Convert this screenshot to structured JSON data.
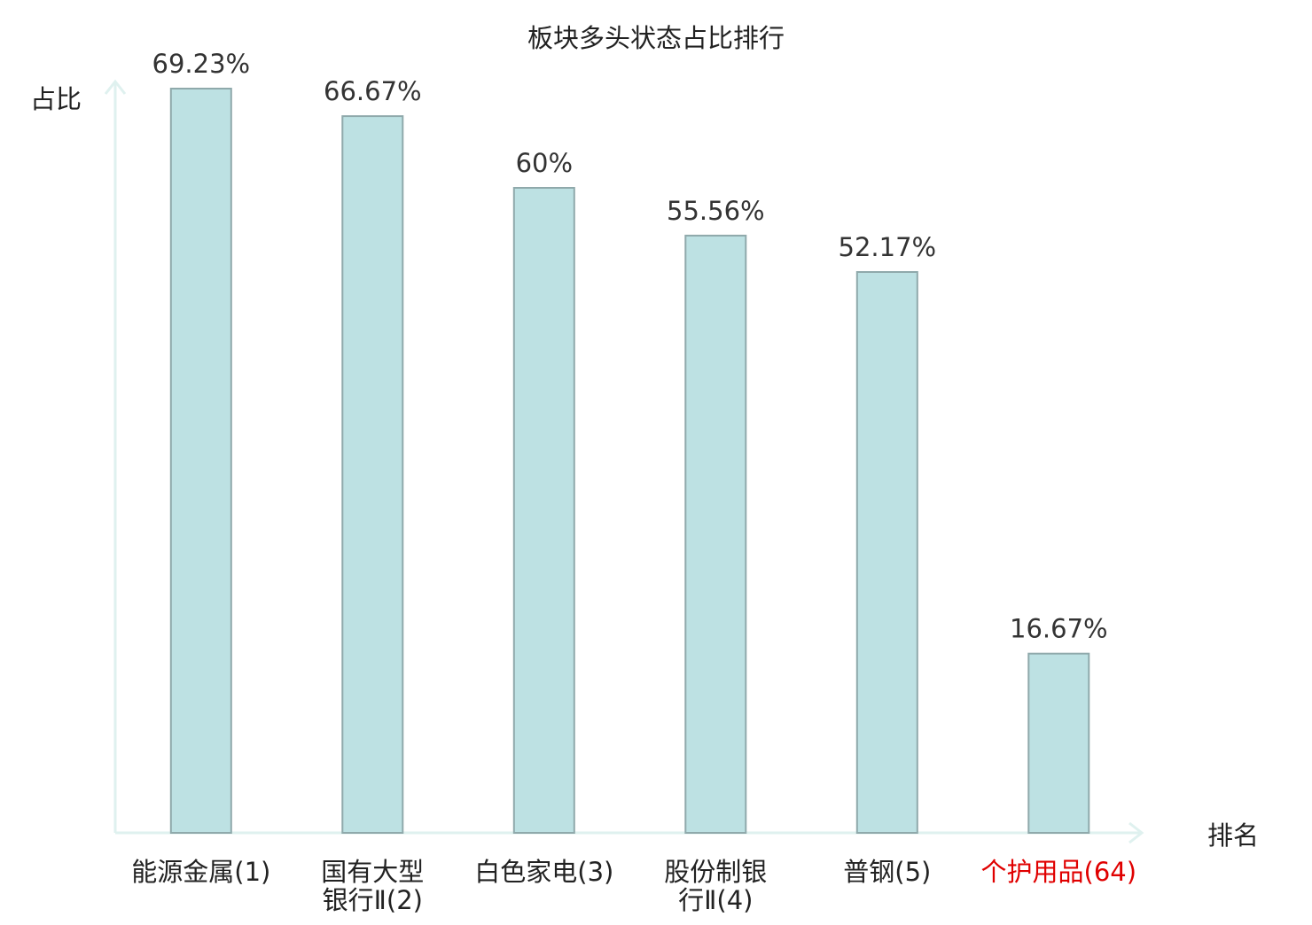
{
  "chart_data": {
    "type": "bar",
    "title": "板块多头状态占比排行",
    "xlabel": "排名",
    "ylabel": "占比",
    "categories": [
      [
        "能源金属(1)"
      ],
      [
        "国有大型",
        "银行Ⅱ(2)"
      ],
      [
        "白色家电(3)"
      ],
      [
        "股份制银",
        "行Ⅱ(4)"
      ],
      [
        "普钢(5)"
      ],
      [
        "个护用品(64)"
      ]
    ],
    "values": [
      69.23,
      66.67,
      60,
      55.56,
      52.17,
      16.67
    ],
    "value_labels": [
      "69.23%",
      "66.67%",
      "60%",
      "55.56%",
      "52.17%",
      "16.67%"
    ],
    "highlight_index": 5,
    "ylim": [
      0,
      69.23
    ],
    "grid": false,
    "legend": "none",
    "colors": {
      "bar_fill": "#bde1e3",
      "bar_stroke": "#8fa9ab",
      "axis": "#dff1ef",
      "text": "#222222",
      "highlight_text": "#e00000"
    }
  }
}
